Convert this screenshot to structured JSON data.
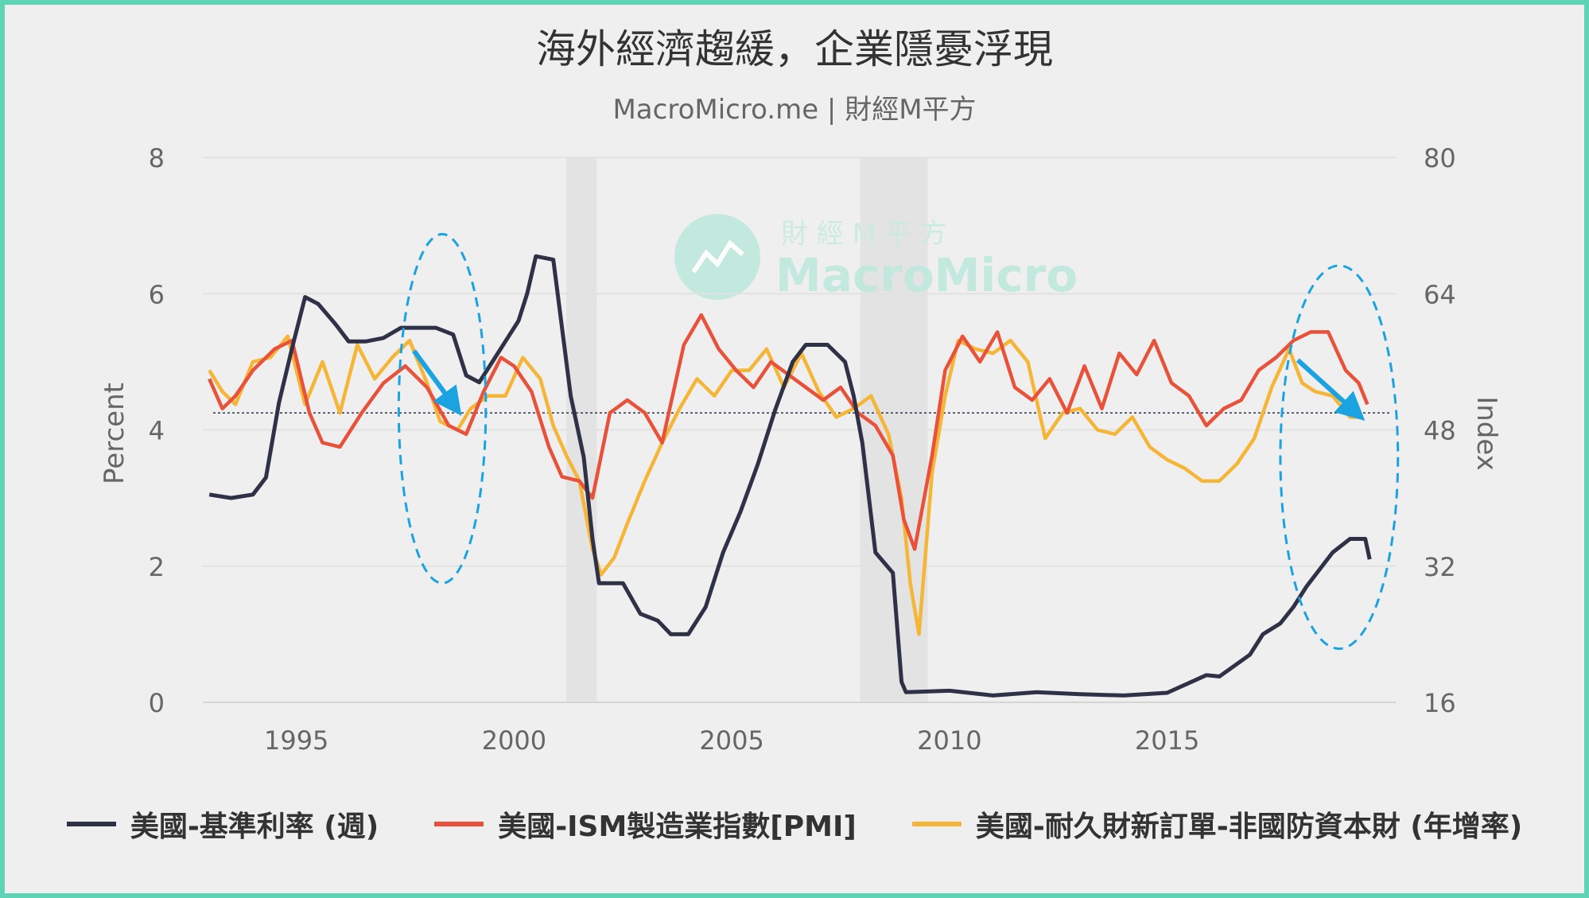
{
  "title": "海外經濟趨緩，企業隱憂浮現",
  "subtitle": "MacroMicro.me | 財經M平方",
  "watermark": {
    "chinese": "財 經 M 平 方",
    "brand": "MacroMicro"
  },
  "colors": {
    "frame": "#5fd4b4",
    "rate": "#2f3247",
    "pmi": "#e8523a",
    "orders": "#f5b536",
    "annotation": "#1aa3e0",
    "recession": "#e3e3e3"
  },
  "chart_data": {
    "type": "line",
    "title": "海外經濟趨緩，企業隱憂浮現",
    "x_ticks": [
      "1995",
      "2000",
      "2005",
      "2010",
      "2015"
    ],
    "x_range": [
      1992.85,
      2020.25
    ],
    "y_left": {
      "label": "Percent",
      "range": [
        0,
        8
      ],
      "ticks": [
        "0",
        "2",
        "4",
        "6",
        "8"
      ]
    },
    "y_right": {
      "label": "Index",
      "range": [
        16,
        80
      ],
      "ticks": [
        "16",
        "32",
        "48",
        "64",
        "80"
      ]
    },
    "reference_line": {
      "axis": "right",
      "value": 50
    },
    "recessions": [
      [
        2001.2,
        2001.9
      ],
      [
        2007.95,
        2009.5
      ]
    ],
    "grid": true,
    "legend_position": "bottom",
    "series": [
      {
        "name": "美國-基準利率 (週)",
        "axis": "left",
        "x": [
          1993.0,
          1993.5,
          1994.0,
          1994.3,
          1994.6,
          1994.9,
          1995.2,
          1995.5,
          1995.9,
          1996.2,
          1996.6,
          1997.0,
          1997.4,
          1997.8,
          1998.2,
          1998.6,
          1998.9,
          1999.2,
          1999.5,
          1999.8,
          2000.1,
          2000.3,
          2000.5,
          2000.9,
          2001.0,
          2001.3,
          2001.6,
          2001.8,
          2001.95,
          2002.5,
          2002.9,
          2003.3,
          2003.6,
          2004.0,
          2004.4,
          2004.8,
          2005.2,
          2005.6,
          2006.0,
          2006.4,
          2006.7,
          2007.2,
          2007.6,
          2007.8,
          2008.0,
          2008.3,
          2008.7,
          2008.9,
          2009.0,
          2010.0,
          2011.0,
          2012.0,
          2013.0,
          2014.0,
          2015.0,
          2015.9,
          2016.2,
          2016.9,
          2017.2,
          2017.6,
          2017.9,
          2018.2,
          2018.5,
          2018.8,
          2019.2,
          2019.4,
          2019.55,
          2019.65
        ],
        "values": [
          3.05,
          3.0,
          3.05,
          3.3,
          4.4,
          5.2,
          5.95,
          5.85,
          5.55,
          5.3,
          5.3,
          5.35,
          5.5,
          5.5,
          5.5,
          5.4,
          4.8,
          4.7,
          5.0,
          5.3,
          5.6,
          6.0,
          6.55,
          6.5,
          6.0,
          4.5,
          3.6,
          2.4,
          1.75,
          1.75,
          1.3,
          1.2,
          1.0,
          1.0,
          1.4,
          2.2,
          2.8,
          3.5,
          4.3,
          5.0,
          5.25,
          5.25,
          5.0,
          4.5,
          3.8,
          2.2,
          1.9,
          0.3,
          0.15,
          0.17,
          0.1,
          0.15,
          0.12,
          0.1,
          0.14,
          0.4,
          0.38,
          0.7,
          1.0,
          1.16,
          1.4,
          1.7,
          1.95,
          2.2,
          2.4,
          2.4,
          2.4,
          2.1
        ]
      },
      {
        "name": "美國-ISM製造業指數[PMI]",
        "axis": "right",
        "x": [
          1993.0,
          1993.3,
          1993.6,
          1994.0,
          1994.5,
          1994.9,
          1995.3,
          1995.6,
          1996.0,
          1996.5,
          1997.0,
          1997.5,
          1998.0,
          1998.5,
          1998.9,
          1999.3,
          1999.7,
          2000.0,
          2000.4,
          2000.8,
          2001.1,
          2001.5,
          2001.8,
          2002.2,
          2002.6,
          2003.0,
          2003.4,
          2003.9,
          2004.3,
          2004.7,
          2005.1,
          2005.5,
          2005.9,
          2006.3,
          2006.7,
          2007.1,
          2007.5,
          2007.9,
          2008.3,
          2008.7,
          2008.95,
          2009.2,
          2009.6,
          2009.9,
          2010.3,
          2010.7,
          2011.1,
          2011.5,
          2011.9,
          2012.3,
          2012.7,
          2013.1,
          2013.5,
          2013.9,
          2014.3,
          2014.7,
          2015.1,
          2015.5,
          2015.9,
          2016.3,
          2016.7,
          2017.1,
          2017.5,
          2017.9,
          2018.3,
          2018.7,
          2019.1,
          2019.4,
          2019.6
        ],
        "values": [
          54.0,
          50.5,
          52.0,
          55.0,
          57.5,
          58.5,
          50.0,
          46.5,
          46.0,
          50.0,
          53.5,
          55.5,
          53.0,
          48.5,
          47.5,
          52.5,
          56.5,
          55.5,
          52.5,
          46.0,
          42.5,
          42.0,
          40.0,
          50.0,
          51.5,
          50.0,
          46.5,
          58.0,
          61.5,
          57.5,
          55.0,
          53.0,
          56.0,
          54.5,
          53.0,
          51.5,
          53.0,
          50.0,
          48.5,
          45.0,
          37.5,
          34.0,
          45.0,
          55.0,
          59.0,
          56.0,
          59.5,
          53.0,
          51.5,
          54.0,
          50.0,
          55.5,
          50.5,
          57.0,
          54.5,
          58.5,
          53.5,
          52.0,
          48.5,
          50.5,
          51.5,
          55.0,
          56.5,
          58.5,
          59.5,
          59.5,
          55.0,
          53.5,
          51.0
        ]
      },
      {
        "name": "美國-耐久財新訂單-非國防資本財 (年增率)",
        "axis": "right",
        "x": [
          1993.0,
          1993.3,
          1993.6,
          1994.0,
          1994.4,
          1994.8,
          1995.2,
          1995.6,
          1996.0,
          1996.4,
          1996.8,
          1997.2,
          1997.6,
          1998.0,
          1998.3,
          1998.7,
          1999.0,
          1999.4,
          1999.8,
          2000.2,
          2000.6,
          2000.9,
          2001.2,
          2001.5,
          2001.8,
          2002.0,
          2002.3,
          2002.6,
          2003.0,
          2003.4,
          2003.8,
          2004.2,
          2004.6,
          2005.0,
          2005.4,
          2005.8,
          2006.2,
          2006.6,
          2007.0,
          2007.4,
          2007.8,
          2008.2,
          2008.6,
          2008.9,
          2009.1,
          2009.3,
          2009.6,
          2009.9,
          2010.2,
          2010.6,
          2011.0,
          2011.4,
          2011.8,
          2012.2,
          2012.6,
          2013.0,
          2013.4,
          2013.8,
          2014.2,
          2014.6,
          2015.0,
          2015.4,
          2015.8,
          2016.2,
          2016.6,
          2017.0,
          2017.4,
          2017.8,
          2018.1,
          2018.4,
          2018.8,
          2019.2,
          2019.5
        ],
        "values": [
          55.0,
          52.5,
          51.0,
          56.0,
          56.5,
          59.0,
          51.0,
          56.0,
          50.0,
          58.0,
          54.0,
          56.5,
          58.5,
          53.5,
          49.0,
          48.0,
          50.5,
          52.0,
          52.0,
          56.5,
          54.0,
          48.5,
          45.0,
          42.0,
          34.0,
          31.0,
          33.0,
          37.0,
          42.0,
          46.5,
          50.5,
          54.0,
          52.0,
          55.0,
          55.0,
          57.5,
          53.0,
          57.0,
          52.5,
          49.5,
          50.5,
          52.0,
          47.5,
          40.0,
          30.0,
          24.0,
          43.0,
          52.0,
          58.5,
          57.5,
          57.0,
          58.5,
          56.0,
          47.0,
          50.0,
          50.5,
          48.0,
          47.5,
          49.5,
          46.0,
          44.5,
          43.5,
          42.0,
          42.0,
          44.0,
          47.0,
          53.0,
          57.5,
          53.5,
          52.5,
          52.0,
          49.5,
          49.5
        ]
      }
    ],
    "annotations": {
      "ellipses": [
        {
          "cx": 1998.35,
          "cy": 50.5,
          "rx": 1.0,
          "ry": 20.5
        },
        {
          "cx": 2018.95,
          "cy": 44.8,
          "rx": 1.35,
          "ry": 22.5
        }
      ],
      "arrows": [
        {
          "x1": 1997.7,
          "y1": 57.3,
          "x2": 1998.6,
          "y2": 51.0
        },
        {
          "x1": 2018.0,
          "y1": 56.2,
          "x2": 2019.3,
          "y2": 50.2
        }
      ]
    }
  }
}
